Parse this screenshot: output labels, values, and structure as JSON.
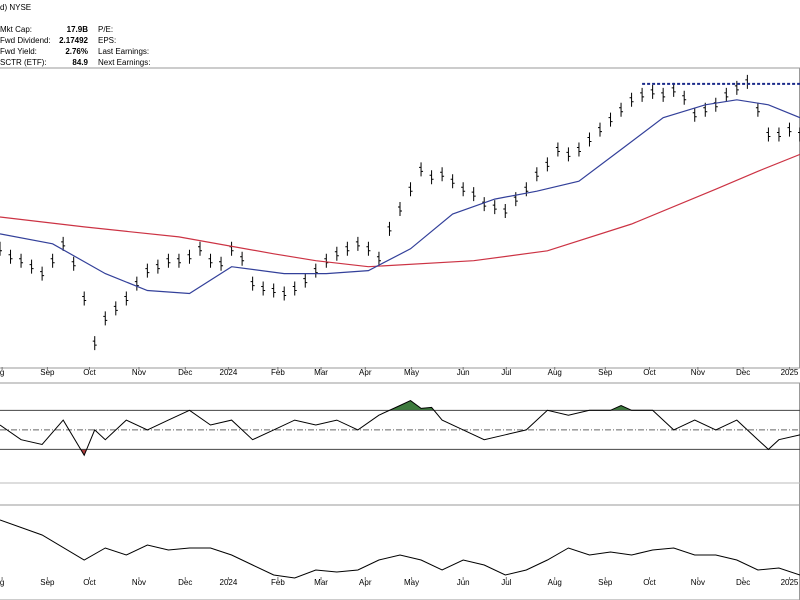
{
  "header": {
    "exchange": "d) NYSE",
    "left": [
      {
        "label": "Mkt Cap:",
        "value": "17.9B"
      },
      {
        "label": "Fwd Dividend:",
        "value": "2.17492"
      },
      {
        "label": "Fwd Yield:",
        "value": "2.76%"
      },
      {
        "label": "SCTR (ETF):",
        "value": "84.9"
      }
    ],
    "right": [
      "P/E:",
      "EPS:",
      "Last Earnings:",
      "Next Earnings:"
    ]
  },
  "chart_data": [
    {
      "type": "ohlc",
      "xlim": [
        0,
        76
      ],
      "ylim": [
        0,
        302
      ],
      "xticks": [
        {
          "value": 0.2,
          "label": "g"
        },
        {
          "value": 4.5,
          "label": "Sep"
        },
        {
          "value": 8.5,
          "label": "Oct"
        },
        {
          "value": 13.2,
          "label": "Nov"
        },
        {
          "value": 17.6,
          "label": "Dec"
        },
        {
          "value": 21.7,
          "label": "2024"
        },
        {
          "value": 26.4,
          "label": "Feb"
        },
        {
          "value": 30.5,
          "label": "Mar"
        },
        {
          "value": 34.7,
          "label": "Apr"
        },
        {
          "value": 39.1,
          "label": "May"
        },
        {
          "value": 44,
          "label": "Jun"
        },
        {
          "value": 48.1,
          "label": "Jul"
        },
        {
          "value": 52.7,
          "label": "Aug"
        },
        {
          "value": 57.5,
          "label": "Sep"
        },
        {
          "value": 61.7,
          "label": "Oct"
        },
        {
          "value": 66.3,
          "label": "Nov"
        },
        {
          "value": 70.6,
          "label": "Dec"
        },
        {
          "value": 75,
          "label": "2025"
        }
      ],
      "color": "#000000",
      "values": [
        120,
        112,
        108,
        102,
        95,
        108,
        125,
        105,
        70,
        25,
        50,
        60,
        70,
        85,
        98,
        102,
        108,
        108,
        112,
        120,
        108,
        105,
        120,
        110,
        85,
        80,
        78,
        75,
        80,
        88,
        98,
        108,
        115,
        120,
        125,
        120,
        110,
        140,
        160,
        180,
        200,
        192,
        195,
        188,
        180,
        175,
        165,
        162,
        158,
        170,
        180,
        195,
        205,
        220,
        215,
        220,
        230,
        240,
        250,
        260,
        270,
        275,
        278,
        275,
        280,
        272,
        255,
        260,
        265,
        275,
        282,
        288,
        260,
        235,
        235,
        240,
        235
      ],
      "series": [
        {
          "color": "#cc3344",
          "x": [
            0,
            8,
            17,
            26,
            30,
            35,
            45,
            52,
            60,
            68,
            72,
            76
          ],
          "values": [
            152,
            142,
            132,
            115,
            108,
            102,
            108,
            118,
            145,
            180,
            198,
            215
          ]
        },
        {
          "color": "#33409a",
          "x": [
            0,
            5,
            10,
            14,
            18,
            22,
            27,
            31,
            35,
            39,
            43,
            47,
            51,
            55,
            59,
            63,
            67,
            70,
            73,
            76
          ],
          "values": [
            135,
            125,
            95,
            78,
            75,
            102,
            95,
            95,
            98,
            120,
            155,
            170,
            178,
            188,
            220,
            252,
            265,
            270,
            265,
            252
          ]
        }
      ],
      "resistance": {
        "x": [
          61,
          76
        ],
        "value": 286,
        "color": "#1a2a8a"
      }
    },
    {
      "type": "line",
      "xlim": [
        0,
        76
      ],
      "ylim": [
        12,
        98
      ],
      "levels": [
        70,
        50,
        30
      ],
      "color": "#000000",
      "upper_fill": "#3d7a3d",
      "lower_fill": "#b04040",
      "x": [
        0,
        2,
        4,
        6,
        8,
        9,
        10,
        12,
        14,
        16,
        18,
        20,
        22,
        24,
        26,
        28,
        30,
        32,
        34,
        36,
        38,
        39,
        40,
        41,
        42,
        44,
        46,
        48,
        50,
        52,
        54,
        56,
        58,
        59,
        60,
        62,
        64,
        66,
        68,
        70,
        72,
        73,
        74,
        76
      ],
      "values": [
        55,
        40,
        35,
        60,
        24,
        50,
        40,
        60,
        50,
        60,
        70,
        55,
        60,
        40,
        50,
        60,
        55,
        60,
        50,
        65,
        75,
        80,
        72,
        73,
        60,
        50,
        40,
        45,
        50,
        70,
        65,
        70,
        70,
        75,
        70,
        70,
        50,
        60,
        50,
        60,
        40,
        30,
        40,
        45
      ]
    },
    {
      "type": "line",
      "xlim": [
        0,
        76
      ],
      "ylim": [
        0,
        95
      ],
      "color": "#000000",
      "xticks": [
        {
          "value": 0.2,
          "label": "g"
        },
        {
          "value": 4.5,
          "label": "Sep"
        },
        {
          "value": 8.5,
          "label": "Oct"
        },
        {
          "value": 13.2,
          "label": "Nov"
        },
        {
          "value": 17.6,
          "label": "Dec"
        },
        {
          "value": 21.7,
          "label": "2024"
        },
        {
          "value": 26.4,
          "label": "Feb"
        },
        {
          "value": 30.5,
          "label": "Mar"
        },
        {
          "value": 34.7,
          "label": "Apr"
        },
        {
          "value": 39.1,
          "label": "May"
        },
        {
          "value": 44,
          "label": "Jun"
        },
        {
          "value": 48.1,
          "label": "Jul"
        },
        {
          "value": 52.7,
          "label": "Aug"
        },
        {
          "value": 57.5,
          "label": "Sep"
        },
        {
          "value": 61.7,
          "label": "Oct"
        },
        {
          "value": 66.3,
          "label": "Nov"
        },
        {
          "value": 70.6,
          "label": "Dec"
        },
        {
          "value": 75,
          "label": "2025"
        }
      ],
      "x": [
        0,
        4,
        8,
        10,
        12,
        14,
        16,
        18,
        20,
        22,
        24,
        26,
        28,
        30,
        32,
        34,
        36,
        38,
        40,
        42,
        44,
        46,
        48,
        50,
        52,
        54,
        56,
        58,
        60,
        62,
        64,
        66,
        68,
        70,
        72,
        74,
        76
      ],
      "values": [
        80,
        65,
        40,
        52,
        45,
        55,
        50,
        52,
        52,
        45,
        35,
        25,
        22,
        30,
        28,
        30,
        40,
        45,
        40,
        30,
        40,
        35,
        25,
        30,
        40,
        52,
        45,
        48,
        45,
        50,
        52,
        45,
        45,
        40,
        30,
        32,
        25
      ]
    }
  ]
}
